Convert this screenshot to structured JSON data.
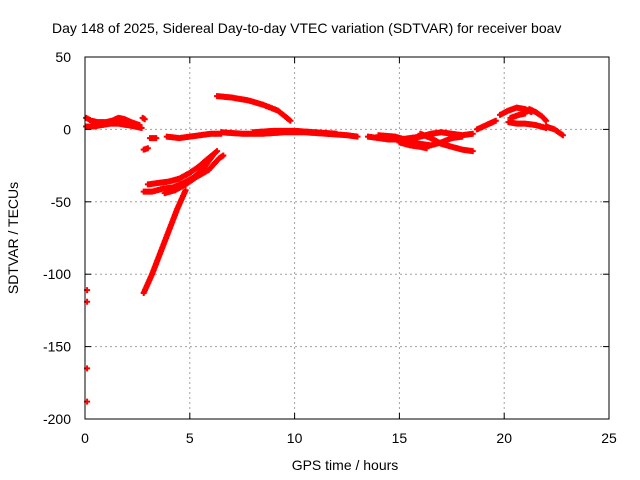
{
  "chart_data": {
    "type": "scatter",
    "title": "Day 148 of 2025, Sidereal Day-to-day VTEC variation (SDTVAR) for receiver boav",
    "xlabel": "GPS time / hours",
    "ylabel": "SDTVAR / TECUs",
    "xlim": [
      0,
      25
    ],
    "ylim": [
      -200,
      50
    ],
    "xticks": [
      0,
      5,
      10,
      15,
      20,
      25
    ],
    "yticks": [
      -200,
      -150,
      -100,
      -50,
      0,
      50
    ],
    "grid": true,
    "marker": "plus",
    "series_color": "#ff0000",
    "segments": [
      [
        [
          0.05,
          8
        ],
        [
          0.3,
          6
        ],
        [
          0.6,
          5
        ],
        [
          1.0,
          5
        ],
        [
          1.3,
          6
        ],
        [
          1.6,
          8
        ],
        [
          1.9,
          7
        ],
        [
          2.2,
          5
        ],
        [
          2.6,
          3
        ]
      ],
      [
        [
          0.05,
          2
        ],
        [
          0.4,
          2
        ],
        [
          0.8,
          3
        ],
        [
          1.2,
          4
        ],
        [
          1.6,
          4
        ],
        [
          2.0,
          3
        ],
        [
          2.4,
          2
        ],
        [
          2.7,
          1
        ]
      ],
      [
        [
          2.75,
          8
        ],
        [
          2.85,
          7
        ]
      ],
      [
        [
          2.8,
          -14
        ],
        [
          3.0,
          -13
        ]
      ],
      [
        [
          3.1,
          -6
        ],
        [
          3.4,
          -6
        ]
      ],
      [
        [
          3.9,
          -5
        ],
        [
          4.5,
          -6
        ],
        [
          5.0,
          -5
        ],
        [
          5.5,
          -4
        ],
        [
          6.0,
          -3
        ],
        [
          6.5,
          -3
        ]
      ],
      [
        [
          6.5,
          -2
        ],
        [
          7.5,
          -3
        ],
        [
          8.5,
          -3
        ],
        [
          9.5,
          -2
        ],
        [
          10.5,
          -2
        ],
        [
          11.5,
          -3
        ],
        [
          12.5,
          -4
        ],
        [
          13.0,
          -5
        ]
      ],
      [
        [
          8.0,
          -2
        ],
        [
          9.0,
          -1
        ],
        [
          10.0,
          -1
        ],
        [
          11.0,
          -2
        ],
        [
          12.0,
          -3
        ]
      ],
      [
        [
          6.3,
          23
        ],
        [
          7.0,
          22
        ],
        [
          7.8,
          20
        ],
        [
          8.5,
          17
        ],
        [
          9.2,
          13
        ],
        [
          9.8,
          6
        ]
      ],
      [
        [
          2.8,
          -43
        ],
        [
          3.2,
          -43
        ],
        [
          3.7,
          -41
        ],
        [
          4.2,
          -40
        ],
        [
          4.7,
          -37
        ],
        [
          5.2,
          -33
        ],
        [
          5.6,
          -28
        ],
        [
          6.1,
          -18
        ]
      ],
      [
        [
          3.0,
          -38
        ],
        [
          3.5,
          -37
        ],
        [
          4.0,
          -36
        ],
        [
          4.5,
          -34
        ],
        [
          5.0,
          -30
        ],
        [
          5.4,
          -26
        ],
        [
          5.8,
          -21
        ],
        [
          6.3,
          -15
        ]
      ],
      [
        [
          3.8,
          -44
        ],
        [
          4.3,
          -42
        ],
        [
          4.8,
          -38
        ],
        [
          5.3,
          -33
        ],
        [
          5.9,
          -28
        ],
        [
          6.4,
          -20
        ],
        [
          6.6,
          -18
        ]
      ],
      [
        [
          2.8,
          -113
        ],
        [
          3.2,
          -100
        ],
        [
          3.6,
          -85
        ],
        [
          4.0,
          -70
        ],
        [
          4.4,
          -55
        ],
        [
          4.8,
          -42
        ]
      ],
      [
        [
          13.5,
          -5
        ],
        [
          14.0,
          -6
        ],
        [
          14.5,
          -7
        ],
        [
          15.0,
          -7
        ],
        [
          15.5,
          -6
        ],
        [
          16.0,
          -5
        ],
        [
          16.5,
          -3
        ],
        [
          17.0,
          -2
        ],
        [
          17.5,
          -3
        ],
        [
          18.0,
          -4
        ],
        [
          18.5,
          -3
        ]
      ],
      [
        [
          14.0,
          -4
        ],
        [
          14.8,
          -5
        ],
        [
          15.5,
          -8
        ],
        [
          16.0,
          -10
        ],
        [
          16.5,
          -11
        ],
        [
          17.0,
          -9
        ],
        [
          17.5,
          -6
        ],
        [
          18.0,
          -5
        ]
      ],
      [
        [
          15.0,
          -9
        ],
        [
          15.5,
          -11
        ],
        [
          16.0,
          -12
        ],
        [
          16.3,
          -13
        ]
      ],
      [
        [
          16.0,
          -3
        ],
        [
          16.5,
          -6
        ],
        [
          17.0,
          -10
        ],
        [
          17.5,
          -12
        ],
        [
          18.0,
          -14
        ],
        [
          18.5,
          -15
        ]
      ],
      [
        [
          18.7,
          0
        ],
        [
          19.0,
          2
        ],
        [
          19.3,
          4
        ],
        [
          19.6,
          6
        ]
      ],
      [
        [
          19.8,
          10
        ],
        [
          20.2,
          13
        ],
        [
          20.6,
          15
        ],
        [
          21.0,
          14
        ],
        [
          21.3,
          12
        ]
      ],
      [
        [
          20.3,
          8
        ],
        [
          20.7,
          10
        ],
        [
          21.0,
          11
        ]
      ],
      [
        [
          20.2,
          5
        ],
        [
          20.6,
          4
        ],
        [
          21.0,
          4
        ],
        [
          21.5,
          3
        ],
        [
          22.0,
          1
        ]
      ],
      [
        [
          21.2,
          14
        ],
        [
          21.5,
          12
        ],
        [
          21.8,
          9
        ],
        [
          22.0,
          6
        ]
      ],
      [
        [
          22.0,
          2
        ],
        [
          22.4,
          0
        ],
        [
          22.8,
          -4
        ]
      ]
    ],
    "isolated_points": [
      [
        0.1,
        -111
      ],
      [
        0.1,
        -119
      ],
      [
        0.1,
        -165
      ],
      [
        0.1,
        -188
      ]
    ]
  }
}
